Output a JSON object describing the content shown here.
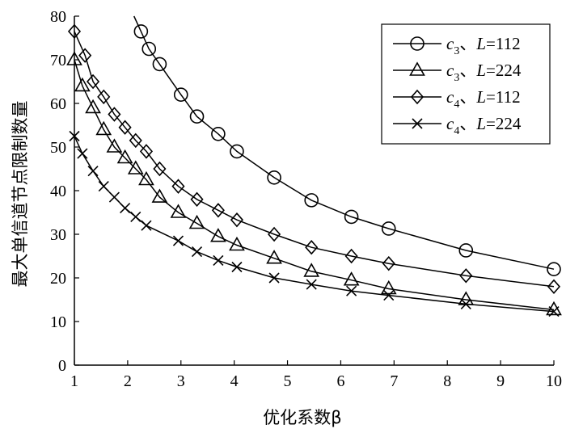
{
  "chart_data": {
    "type": "line",
    "xlabel": "优化系数β",
    "ylabel": "最大单信道节点限制数量",
    "xlim": [
      1,
      10
    ],
    "ylim": [
      0,
      80
    ],
    "xticks": [
      1,
      2,
      3,
      4,
      5,
      6,
      7,
      8,
      9,
      10
    ],
    "yticks": [
      0,
      10,
      20,
      30,
      40,
      50,
      60,
      70,
      80
    ],
    "grid": false,
    "legend_position": "top-right",
    "series": [
      {
        "name": "c3、L=112",
        "var": "c",
        "sub": "3",
        "sep": "、",
        "param": "L",
        "param_value": "=112",
        "marker": "circle",
        "x": [
          2.25,
          2.4,
          2.6,
          3.0,
          3.3,
          3.7,
          4.05,
          4.75,
          5.45,
          6.2,
          6.9,
          8.35,
          10.0
        ],
        "y": [
          76.5,
          72.5,
          69.0,
          62.0,
          57.0,
          53.0,
          49.0,
          43.0,
          37.8,
          34.0,
          31.3,
          26.3,
          22.0
        ]
      },
      {
        "name": "c3、L=224",
        "var": "c",
        "sub": "3",
        "sep": "、",
        "param": "L",
        "param_value": "=224",
        "marker": "triangle",
        "x": [
          1.0,
          1.15,
          1.35,
          1.55,
          1.75,
          1.95,
          2.15,
          2.35,
          2.6,
          2.95,
          3.3,
          3.7,
          4.05,
          4.75,
          5.45,
          6.2,
          6.9,
          8.35,
          10.0
        ],
        "y": [
          70.0,
          64.0,
          59.0,
          54.0,
          50.0,
          47.5,
          45.0,
          42.5,
          38.5,
          35.0,
          32.5,
          29.5,
          27.5,
          24.5,
          21.5,
          19.5,
          17.5,
          15.0,
          12.7
        ]
      },
      {
        "name": "c4、L=112",
        "var": "c",
        "sub": "4",
        "sep": "、",
        "param": "L",
        "param_value": "=112",
        "marker": "diamond",
        "x": [
          1.0,
          1.2,
          1.35,
          1.55,
          1.75,
          1.95,
          2.15,
          2.35,
          2.6,
          2.95,
          3.3,
          3.7,
          4.05,
          4.75,
          5.45,
          6.2,
          6.9,
          8.35,
          10.0
        ],
        "y": [
          76.5,
          71.0,
          65.0,
          61.5,
          57.5,
          54.5,
          51.5,
          49.0,
          45.0,
          41.0,
          38.0,
          35.5,
          33.3,
          30.0,
          27.0,
          25.0,
          23.3,
          20.5,
          18.0
        ]
      },
      {
        "name": "c4、L=224",
        "var": "c",
        "sub": "4",
        "sep": "、",
        "param": "L",
        "param_value": "=224",
        "marker": "cross",
        "x": [
          1.0,
          1.15,
          1.35,
          1.55,
          1.75,
          1.95,
          2.15,
          2.35,
          2.95,
          3.3,
          3.7,
          4.05,
          4.75,
          5.45,
          6.2,
          6.9,
          8.35,
          10.0
        ],
        "y": [
          52.5,
          48.5,
          44.5,
          41.0,
          38.5,
          36.0,
          34.0,
          32.0,
          28.5,
          26.0,
          24.0,
          22.5,
          20.0,
          18.5,
          17.0,
          16.0,
          14.0,
          12.3
        ]
      }
    ]
  }
}
